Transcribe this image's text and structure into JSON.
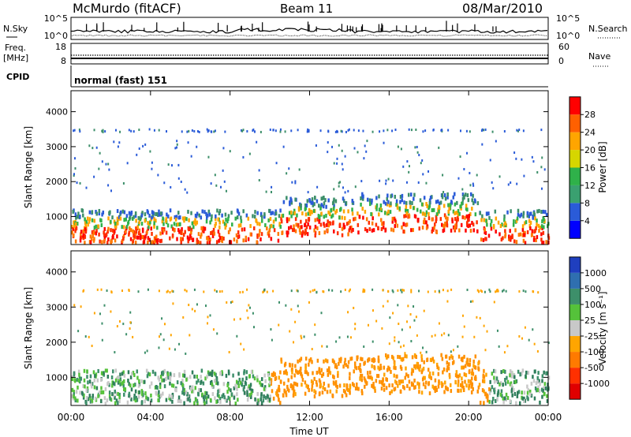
{
  "header": {
    "station": "McMurdo (fitACF)",
    "beam": "Beam 11",
    "date": "08/Mar/2010"
  },
  "strip": {
    "nsky_label": "N.Sky",
    "nsearch_label": "N.Search",
    "noise_top": "10^5",
    "noise_bottom": "10^0",
    "freq_label_1": "Freq.",
    "freq_label_2": "[MHz]",
    "freq_top": "18",
    "freq_bottom": "8",
    "nave_top": "60",
    "nave_bottom": "0",
    "nave_label": "Nave",
    "cpid_label": "CPID",
    "cpid_value": "normal (fast) 151"
  },
  "chart_data": [
    {
      "type": "heatmap",
      "name": "power",
      "xlabel": "Time UT",
      "ylabel": "Slant Range [km]",
      "xlim": [
        0,
        24
      ],
      "ylim": [
        200,
        4600
      ],
      "x_ticks": [
        "00:00",
        "04:00",
        "08:00",
        "12:00",
        "16:00",
        "20:00",
        "00:00"
      ],
      "x_tick_values": [
        0,
        4,
        8,
        12,
        16,
        20,
        24
      ],
      "y_ticks": [
        "1000",
        "2000",
        "3000",
        "4000"
      ],
      "y_tick_values": [
        1000,
        2000,
        3000,
        4000
      ],
      "colorbar": {
        "label": "Power [dB]",
        "ticks": [
          "4",
          "8",
          "12",
          "16",
          "20",
          "24",
          "28"
        ],
        "colors": [
          "#0000ff",
          "#2a5bd8",
          "#3aa070",
          "#2fb14a",
          "#d6d600",
          "#ffa500",
          "#ff6000",
          "#ff0000"
        ]
      }
    },
    {
      "type": "heatmap",
      "name": "velocity",
      "xlabel": "Time UT",
      "ylabel": "Slant Range [km]",
      "xlim": [
        0,
        24
      ],
      "ylim": [
        200,
        4600
      ],
      "x_ticks": [
        "00:00",
        "04:00",
        "08:00",
        "12:00",
        "16:00",
        "20:00",
        "00:00"
      ],
      "x_tick_values": [
        0,
        4,
        8,
        12,
        16,
        20,
        24
      ],
      "y_ticks": [
        "1000",
        "2000",
        "3000",
        "4000"
      ],
      "y_tick_values": [
        1000,
        2000,
        3000,
        4000
      ],
      "colorbar": {
        "label": "Velocity [m s⁻¹]",
        "ticks": [
          "1000",
          "500",
          "100",
          "25",
          "-25",
          "-100",
          "-500",
          "-1000"
        ],
        "colors": [
          "#1f3fbf",
          "#2f6fb0",
          "#3d8f6a",
          "#55c23a",
          "#c8c8c8",
          "#ffa500",
          "#ff7a00",
          "#ff3000",
          "#e00000"
        ]
      }
    }
  ]
}
